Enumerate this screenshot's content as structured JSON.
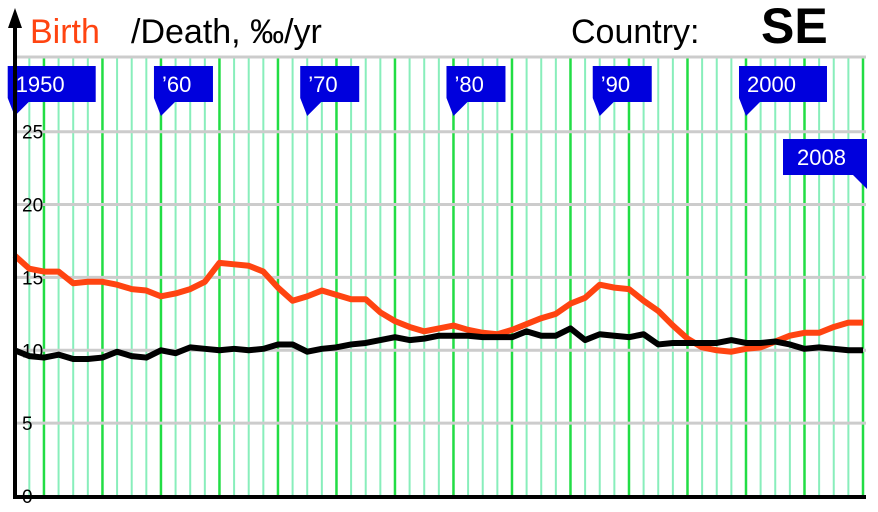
{
  "header": {
    "title_birth": "Birth",
    "title_rest": "/Death, ‰/yr",
    "country_label": "Country:",
    "country_code": "SE"
  },
  "chart_data": {
    "type": "line",
    "title": "Birth /Death, ‰/yr",
    "xlim": [
      1950,
      2008
    ],
    "ylim": [
      0,
      25
    ],
    "y_ticks": [
      "0",
      "5",
      "10",
      "15",
      "20",
      "25"
    ],
    "x_flags": [
      {
        "year": 1950,
        "label": "1950"
      },
      {
        "year": 1960,
        "label": "’60"
      },
      {
        "year": 1970,
        "label": "’70"
      },
      {
        "year": 1980,
        "label": "’80"
      },
      {
        "year": 1990,
        "label": "’90"
      },
      {
        "year": 2000,
        "label": "2000"
      },
      {
        "year": 2008,
        "label": "2008"
      }
    ],
    "grid": true,
    "colors": {
      "birth": "#ff4411",
      "death": "#000000",
      "year_line": "#88eebb",
      "leap_year_line": "#22dd44",
      "h_grid": "#cccccc",
      "flag": "#0000dd"
    },
    "x": [
      1950,
      1951,
      1952,
      1953,
      1954,
      1955,
      1956,
      1957,
      1958,
      1959,
      1960,
      1961,
      1962,
      1963,
      1964,
      1965,
      1966,
      1967,
      1968,
      1969,
      1970,
      1971,
      1972,
      1973,
      1974,
      1975,
      1976,
      1977,
      1978,
      1979,
      1980,
      1981,
      1982,
      1983,
      1984,
      1985,
      1986,
      1987,
      1988,
      1989,
      1990,
      1991,
      1992,
      1993,
      1994,
      1995,
      1996,
      1997,
      1998,
      1999,
      2000,
      2001,
      2002,
      2003,
      2004,
      2005,
      2006,
      2007,
      2008
    ],
    "series": [
      {
        "name": "Birth",
        "color": "#ff4411",
        "values": [
          16.5,
          15.6,
          15.4,
          15.4,
          14.6,
          14.7,
          14.7,
          14.5,
          14.2,
          14.1,
          13.7,
          13.9,
          14.2,
          14.7,
          16.0,
          15.9,
          15.8,
          15.4,
          14.3,
          13.4,
          13.7,
          14.1,
          13.8,
          13.5,
          13.5,
          12.6,
          12.0,
          11.6,
          11.3,
          11.5,
          11.7,
          11.4,
          11.2,
          11.1,
          11.4,
          11.8,
          12.2,
          12.5,
          13.2,
          13.6,
          14.5,
          14.3,
          14.2,
          13.4,
          12.7,
          11.7,
          10.8,
          10.2,
          10.0,
          9.9,
          10.1,
          10.2,
          10.6,
          11.0,
          11.2,
          11.2,
          11.6,
          11.9,
          11.9
        ]
      },
      {
        "name": "Death",
        "color": "#000000",
        "values": [
          10.0,
          9.6,
          9.5,
          9.7,
          9.4,
          9.4,
          9.5,
          9.9,
          9.6,
          9.5,
          10.0,
          9.8,
          10.2,
          10.1,
          10.0,
          10.1,
          10.0,
          10.1,
          10.4,
          10.4,
          9.9,
          10.1,
          10.2,
          10.4,
          10.5,
          10.7,
          10.9,
          10.7,
          10.8,
          11.0,
          11.0,
          11.0,
          10.9,
          10.9,
          10.9,
          11.3,
          11.0,
          11.0,
          11.5,
          10.7,
          11.1,
          11.0,
          10.9,
          11.1,
          10.4,
          10.5,
          10.5,
          10.5,
          10.5,
          10.7,
          10.5,
          10.5,
          10.6,
          10.4,
          10.1,
          10.2,
          10.1,
          10.0,
          10.0
        ]
      }
    ]
  }
}
